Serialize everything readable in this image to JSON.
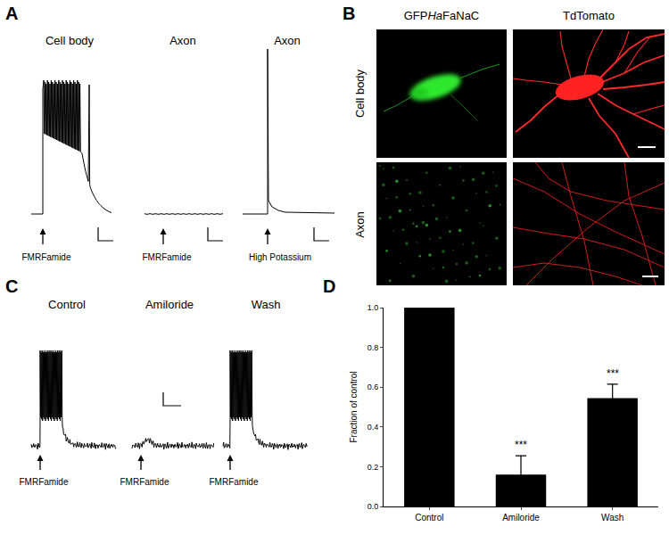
{
  "panels": {
    "A": {
      "label": "A",
      "traces": [
        {
          "title": "Cell body",
          "stimulus": "FMRFamide"
        },
        {
          "title": "Axon",
          "stimulus": "FMRFamide"
        },
        {
          "title": "Axon",
          "stimulus": "High Potassium"
        }
      ]
    },
    "B": {
      "label": "B",
      "columns": [
        {
          "text": "GFP",
          "italic": "Ha",
          "rest": "FaNaC"
        },
        {
          "text": "TdTomato"
        }
      ],
      "rows": [
        "Cell body",
        "Axon"
      ]
    },
    "C": {
      "label": "C",
      "traces": [
        {
          "title": "Control",
          "stimulus": "FMRFamide"
        },
        {
          "title": "Amiloride",
          "stimulus": "FMRFamide"
        },
        {
          "title": "Wash",
          "stimulus": "FMRFamide"
        }
      ]
    },
    "D": {
      "label": "D"
    }
  },
  "chart_data": {
    "type": "bar",
    "categories": [
      "Control",
      "Amiloride",
      "Wash"
    ],
    "values": [
      1,
      0.16,
      0.545
    ],
    "errors": [
      0,
      0.095,
      0.07
    ],
    "color": "#000000",
    "ylabel": "Fraction of control",
    "ylim": [
      0,
      1
    ],
    "yticks": [
      {
        "value": 0,
        "label": "0.0"
      },
      0.2,
      0.4,
      0.6,
      0.8,
      {
        "value": 1,
        "label": "1.0"
      }
    ],
    "annotations": [
      {
        "category": "Amiloride",
        "text": "***"
      },
      {
        "category": "Wash",
        "text": "***"
      }
    ],
    "grid": false
  }
}
